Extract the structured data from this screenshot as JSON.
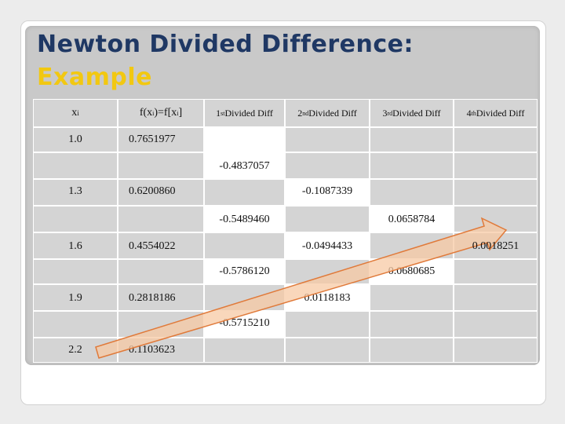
{
  "title": {
    "line1": "Newton Divided Difference:",
    "line2": "Example"
  },
  "headers": {
    "xi": "x",
    "xi_sub": "i",
    "fxi_pre": "f(x",
    "fxi_sub1": "i",
    "fxi_mid": ")=f[x",
    "fxi_sub2": "i",
    "fxi_post": "]",
    "d1_num": "1",
    "d1_sup": "st",
    "d1_text": " Divided Diff",
    "d2_num": "2",
    "d2_sup": "nd",
    "d2_text": " Divided Diff",
    "d3_num": "3",
    "d3_sup": "rd",
    "d3_text": " Divided Diff",
    "d4_num": "4",
    "d4_sup": "th",
    "d4_text": " Divided Diff"
  },
  "x": [
    "1.0",
    "1.3",
    "1.6",
    "1.9",
    "2.2"
  ],
  "f": [
    "0.7651977",
    "0.6200860",
    "0.4554022",
    "0.2818186",
    "0.1103623"
  ],
  "d1": [
    "-0.4837057",
    "-0.5489460",
    "-0.5786120",
    "-0.5715210"
  ],
  "d2": [
    "-0.1087339",
    "-0.0494433",
    "0.0118183"
  ],
  "d3": [
    "0.0658784",
    "0.0680685"
  ],
  "d4": [
    "0.0018251"
  ],
  "colors": {
    "title": "#1f3864",
    "accent": "#f2c811",
    "arrow_fill": "#f7c9a4",
    "arrow_stroke": "#e07a3a"
  }
}
